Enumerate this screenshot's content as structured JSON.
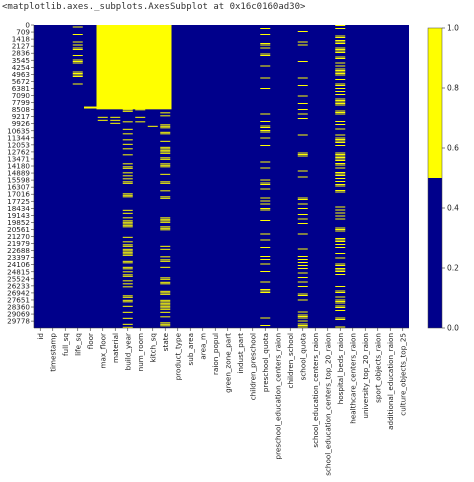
{
  "output_repr": "<matplotlib.axes._subplots.AxesSubplot at 0x16c0160ad30>",
  "chart_data": {
    "type": "heatmap",
    "description_of_values": "binary missing-value map: 1 = missing (yellow), 0 = present (blue)",
    "columns": [
      "id",
      "timestamp",
      "full_sq",
      "life_sq",
      "floor",
      "max_floor",
      "material",
      "build_year",
      "num_room",
      "kitch_sq",
      "state",
      "product_type",
      "sub_area",
      "area_m",
      "raion_popul",
      "green_zone_part",
      "indust_part",
      "children_preschool",
      "preschool_quota",
      "preschool_education_centers_raion",
      "children_school",
      "school_quota",
      "school_education_centers_raion",
      "school_education_centers_top_20_raion",
      "hospital_beds_raion",
      "healthcare_centers_raion",
      "university_top_20_raion",
      "sport_objects_raion",
      "additional_education_raion",
      "culture_objects_top_25"
    ],
    "x_tick_labels": [
      "id",
      "timestamp",
      "full_sq",
      "life_sq",
      "floor",
      "max_floor",
      "material",
      "build_year",
      "num_room",
      "kitch_sq",
      "state",
      "product_type",
      "sub_area",
      "area_m",
      "raion_popul",
      "green_zone_part",
      "indust_part",
      "children_preschool",
      "preschool_quota",
      "preschool_education_centers_raion",
      "children_school",
      "school_quota",
      "school_education_centers_raion",
      "school_education_centers_top_20_raion",
      "hospital_beds_raion",
      "healthcare_centers_raion",
      "university_top_20_raion",
      "sport_objects_raion",
      "additional_education_raion",
      "culture_objects_top_25"
    ],
    "y_tick_labels": [
      "0",
      "709",
      "1418",
      "2127",
      "2836",
      "3545",
      "4254",
      "4963",
      "5672",
      "6381",
      "7090",
      "7799",
      "8508",
      "9217",
      "9926",
      "10635",
      "11344",
      "12053",
      "12762",
      "13471",
      "14180",
      "14889",
      "15598",
      "16307",
      "17016",
      "17725",
      "18434",
      "19143",
      "19852",
      "20561",
      "21270",
      "21979",
      "22688",
      "23397",
      "24106",
      "24815",
      "25524",
      "26233",
      "26942",
      "27651",
      "28360",
      "29069",
      "29778"
    ],
    "n_rows": 30471,
    "missing_segments": {
      "life_sq": [
        [
          0,
          6300,
          0.38
        ]
      ],
      "floor": [
        [
          8200,
          8400,
          1.0
        ]
      ],
      "max_floor": [
        [
          0,
          8480,
          1.0
        ],
        [
          8480,
          10200,
          0.25
        ]
      ],
      "material": [
        [
          0,
          8480,
          1.0
        ],
        [
          8480,
          10200,
          0.25
        ]
      ],
      "build_year": [
        [
          0,
          8480,
          1.0
        ],
        [
          8480,
          30471,
          0.42
        ]
      ],
      "num_room": [
        [
          0,
          8480,
          1.0
        ],
        [
          8480,
          10200,
          0.25
        ]
      ],
      "kitch_sq": [
        [
          0,
          8480,
          1.0
        ],
        [
          8480,
          10200,
          0.25
        ]
      ],
      "state": [
        [
          0,
          8480,
          1.0
        ],
        [
          8480,
          30471,
          0.38
        ]
      ],
      "preschool_quota": [
        [
          0,
          30471,
          0.22
        ]
      ],
      "school_quota": [
        [
          0,
          30471,
          0.22
        ]
      ],
      "hospital_beds_raion": [
        [
          0,
          30471,
          0.47
        ]
      ]
    },
    "colorbar": {
      "low_color": "#00008b",
      "high_color": "#ffff00",
      "ticks": [
        "0.0",
        "0.2",
        "0.4",
        "0.6",
        "0.8",
        "1.0"
      ],
      "range": [
        0,
        1
      ]
    }
  }
}
